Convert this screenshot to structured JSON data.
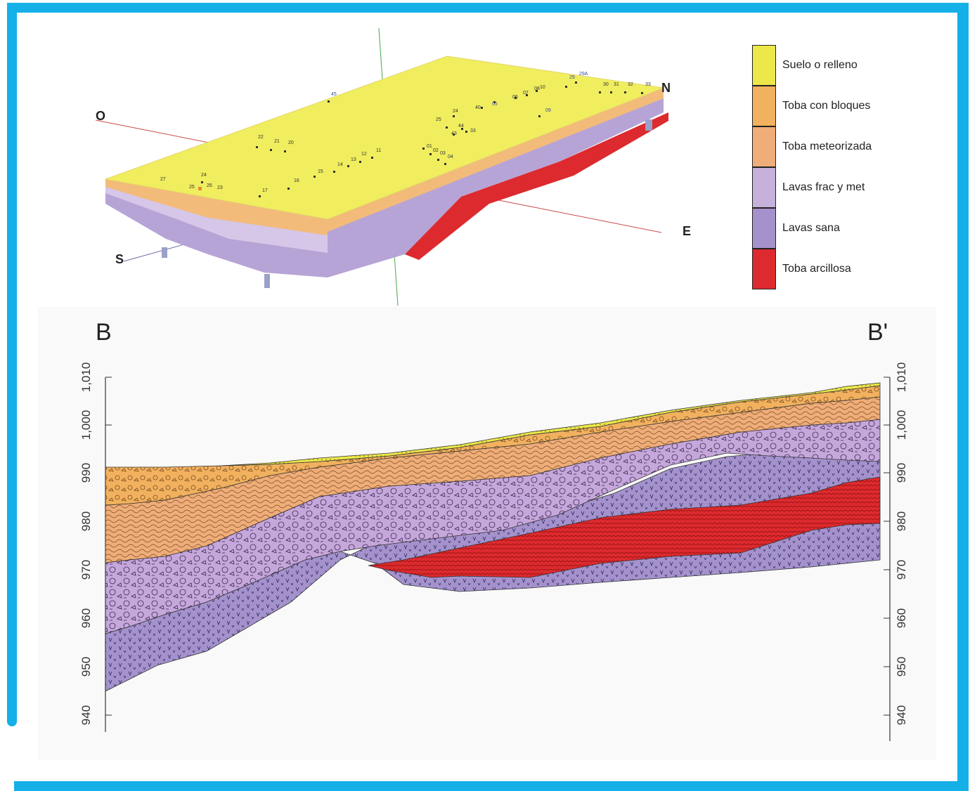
{
  "block_diagram": {
    "compass": {
      "west": "O",
      "south": "S",
      "north": "N",
      "east": "E"
    },
    "borehole_labels": [
      "45",
      "22",
      "21",
      "20",
      "27",
      "24",
      "25",
      "26",
      "23",
      "17",
      "16",
      "15",
      "14",
      "13",
      "12",
      "11",
      "01",
      "02",
      "03",
      "04",
      "24",
      "25",
      "44",
      "43",
      "33",
      "40",
      "05",
      "06",
      "07",
      "08",
      "09",
      "10",
      "29",
      "29A",
      "30",
      "31",
      "32",
      "33"
    ]
  },
  "legend": {
    "items": [
      {
        "label": "Suelo o relleno",
        "color": "#ece84a"
      },
      {
        "label": "Toba con bloques",
        "color": "#f1b15e"
      },
      {
        "label": "Toba meteorizada",
        "color": "#efad79"
      },
      {
        "label": "Lavas frac y met",
        "color": "#c6b1da"
      },
      {
        "label": "Lavas sana",
        "color": "#a592cc"
      },
      {
        "label": "Toba arcillosa",
        "color": "#dd2a2e"
      }
    ]
  },
  "section": {
    "start_label": "B",
    "end_label": "B'",
    "elevation_ticks": [
      "940",
      "950",
      "960",
      "970",
      "980",
      "990",
      "1,000",
      "1,010"
    ]
  },
  "colors": {
    "frame": "#15b0e8"
  }
}
